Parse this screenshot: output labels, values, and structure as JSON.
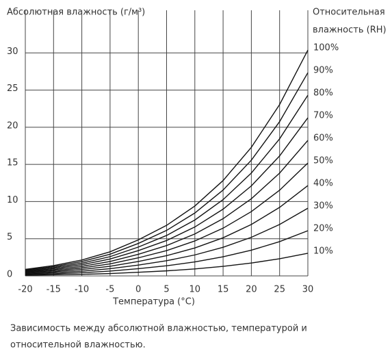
{
  "chart_data": {
    "type": "line",
    "title": "Абсолютная влажность (г/м³)",
    "y2_title_lines": [
      "Относительная",
      "влажность (RH)"
    ],
    "x_label": "Температура (°C)",
    "caption_lines": [
      "Зависимость между абсолютной влажностью, температурой и",
      "относительной влажностью."
    ],
    "x": [
      -20,
      -15,
      -10,
      -5,
      0,
      5,
      10,
      15,
      20,
      25,
      30
    ],
    "xlim": [
      -20,
      30
    ],
    "xticks": [
      -20,
      -15,
      -10,
      -5,
      0,
      5,
      10,
      15,
      20,
      25,
      30
    ],
    "ylim": [
      0,
      35
    ],
    "yticks": [
      0,
      5,
      10,
      15,
      20,
      25,
      30
    ],
    "grid": true,
    "series": [
      {
        "name": "100%",
        "color": "#111111",
        "values": [
          0.88,
          1.39,
          2.14,
          3.24,
          4.85,
          6.8,
          9.4,
          12.83,
          17.3,
          23.05,
          30.38
        ]
      },
      {
        "name": "90%",
        "color": "#111111",
        "values": [
          0.79,
          1.25,
          1.93,
          2.92,
          4.37,
          6.12,
          8.46,
          11.55,
          15.57,
          20.75,
          27.34
        ]
      },
      {
        "name": "80%",
        "color": "#111111",
        "values": [
          0.7,
          1.11,
          1.71,
          2.59,
          3.88,
          5.44,
          7.52,
          10.26,
          13.84,
          18.44,
          24.3
        ]
      },
      {
        "name": "70%",
        "color": "#111111",
        "values": [
          0.62,
          0.97,
          1.5,
          2.27,
          3.4,
          4.76,
          6.58,
          8.98,
          12.11,
          16.14,
          21.27
        ]
      },
      {
        "name": "60%",
        "color": "#111111",
        "values": [
          0.53,
          0.83,
          1.28,
          1.94,
          2.91,
          4.08,
          5.64,
          7.7,
          10.38,
          13.83,
          18.23
        ]
      },
      {
        "name": "50%",
        "color": "#111111",
        "values": [
          0.44,
          0.7,
          1.07,
          1.62,
          2.43,
          3.4,
          4.7,
          6.42,
          8.65,
          11.53,
          15.19
        ]
      },
      {
        "name": "40%",
        "color": "#111111",
        "values": [
          0.35,
          0.56,
          0.86,
          1.3,
          1.94,
          2.72,
          3.76,
          5.13,
          6.92,
          9.22,
          12.15
        ]
      },
      {
        "name": "30%",
        "color": "#111111",
        "values": [
          0.26,
          0.42,
          0.64,
          0.97,
          1.46,
          2.04,
          2.82,
          3.85,
          5.19,
          6.92,
          9.11
        ]
      },
      {
        "name": "20%",
        "color": "#111111",
        "values": [
          0.18,
          0.28,
          0.43,
          0.65,
          0.97,
          1.36,
          1.88,
          2.57,
          3.46,
          4.61,
          6.08
        ]
      },
      {
        "name": "10%",
        "color": "#111111",
        "values": [
          0.09,
          0.14,
          0.21,
          0.32,
          0.49,
          0.68,
          0.94,
          1.28,
          1.73,
          2.31,
          3.04
        ]
      }
    ]
  }
}
